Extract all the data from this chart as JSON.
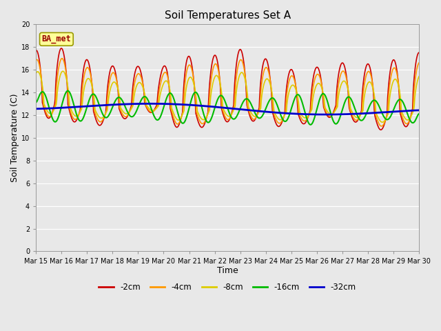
{
  "title": "Soil Temperatures Set A",
  "xlabel": "Time",
  "ylabel": "Soil Temperature (C)",
  "ylim": [
    0,
    20
  ],
  "yticks": [
    0,
    2,
    4,
    6,
    8,
    10,
    12,
    14,
    16,
    18,
    20
  ],
  "xtick_labels": [
    "Mar 15",
    "Mar 16",
    "Mar 17",
    "Mar 18",
    "Mar 19",
    "Mar 20",
    "Mar 21",
    "Mar 22",
    "Mar 23",
    "Mar 24",
    "Mar 25",
    "Mar 26",
    "Mar 27",
    "Mar 28",
    "Mar 29",
    "Mar 30"
  ],
  "legend_labels": [
    "-2cm",
    "-4cm",
    "-8cm",
    "-16cm",
    "-32cm"
  ],
  "legend_colors": [
    "#cc0000",
    "#ff9900",
    "#ddcc00",
    "#00bb00",
    "#0000cc"
  ],
  "line_widths": [
    1.2,
    1.2,
    1.2,
    1.5,
    2.0
  ],
  "annotation_text": "BA_met",
  "annotation_box_color": "#ffff99",
  "annotation_text_color": "#990000",
  "plot_bg_color": "#e8e8e8",
  "fig_bg_color": "#e8e8e8"
}
